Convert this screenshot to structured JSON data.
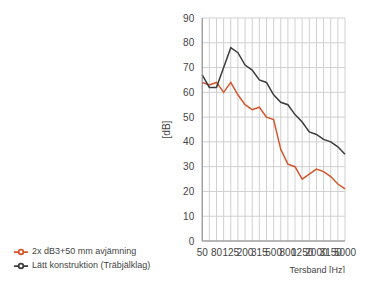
{
  "chart_data": {
    "type": "line",
    "x_label": "Tersband [Hz]",
    "y_label": "[dB]",
    "categories": [
      "50",
      null,
      "80",
      null,
      "125",
      null,
      "200",
      null,
      "315",
      null,
      "500",
      null,
      "800",
      null,
      "1250",
      null,
      "2000",
      null,
      "3150",
      null,
      "5000"
    ],
    "series": [
      {
        "name": "2x dB3+50 mm avjämning",
        "color": "#d4562c",
        "values": [
          64,
          63,
          64,
          60,
          64,
          59,
          55,
          53,
          54,
          50,
          49,
          37,
          31,
          30,
          25,
          27,
          29,
          28,
          26,
          23,
          21
        ]
      },
      {
        "name": "Lätt konstruktion (Träbjälklag)",
        "color": "#3c3c3c",
        "values": [
          67,
          62,
          62,
          70,
          78,
          76,
          71,
          69,
          65,
          64,
          59,
          56,
          55,
          51,
          48,
          44,
          43,
          41,
          40,
          38,
          35
        ]
      }
    ],
    "ylim": [
      0,
      90
    ],
    "yticks": [
      0,
      10,
      20,
      30,
      40,
      50,
      60,
      70,
      80,
      90
    ],
    "grid": true,
    "legend": "bottom-left",
    "marker": "none"
  }
}
